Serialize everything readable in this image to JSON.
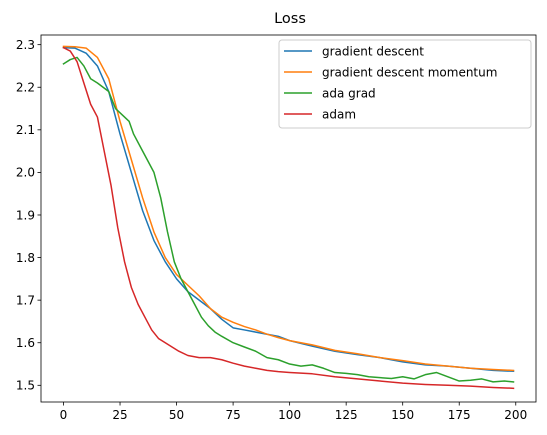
{
  "chart_data": {
    "type": "line",
    "title": "Loss",
    "xlabel": "",
    "ylabel": "",
    "xlim": [
      -9.95,
      208.95
    ],
    "ylim": [
      1.4608,
      2.3227
    ],
    "xticks": [
      0,
      25,
      50,
      75,
      100,
      125,
      150,
      175,
      200
    ],
    "yticks": [
      1.5,
      1.6,
      1.7,
      1.8,
      1.9,
      2.0,
      2.1,
      2.2,
      2.3
    ],
    "xtick_labels": [
      "0",
      "25",
      "50",
      "75",
      "100",
      "125",
      "150",
      "175",
      "200"
    ],
    "ytick_labels": [
      "1.5",
      "1.6",
      "1.7",
      "1.8",
      "1.9",
      "2.0",
      "2.1",
      "2.2",
      "2.3"
    ],
    "grid": false,
    "legend_position": "top-right",
    "series": [
      {
        "name": "gradient descent",
        "color": "#1f77b4",
        "x": [
          0,
          5,
          10,
          15,
          20,
          25,
          30,
          35,
          40,
          45,
          50,
          55,
          60,
          65,
          70,
          75,
          80,
          85,
          90,
          95,
          100,
          110,
          120,
          130,
          140,
          150,
          160,
          170,
          180,
          190,
          199
        ],
        "y": [
          2.293,
          2.292,
          2.28,
          2.25,
          2.19,
          2.09,
          2.0,
          1.91,
          1.84,
          1.79,
          1.75,
          1.72,
          1.7,
          1.68,
          1.655,
          1.635,
          1.63,
          1.625,
          1.62,
          1.615,
          1.605,
          1.592,
          1.58,
          1.572,
          1.565,
          1.555,
          1.548,
          1.545,
          1.54,
          1.535,
          1.533
        ]
      },
      {
        "name": "gradient descent momentum",
        "color": "#ff7f0e",
        "x": [
          0,
          5,
          10,
          15,
          20,
          25,
          30,
          35,
          40,
          45,
          50,
          55,
          60,
          65,
          70,
          75,
          80,
          85,
          90,
          95,
          100,
          110,
          120,
          130,
          140,
          150,
          160,
          170,
          180,
          190,
          199
        ],
        "y": [
          2.296,
          2.295,
          2.292,
          2.27,
          2.22,
          2.12,
          2.03,
          1.94,
          1.86,
          1.8,
          1.76,
          1.735,
          1.71,
          1.68,
          1.66,
          1.648,
          1.638,
          1.63,
          1.62,
          1.612,
          1.605,
          1.595,
          1.582,
          1.574,
          1.565,
          1.558,
          1.55,
          1.545,
          1.54,
          1.537,
          1.535
        ]
      },
      {
        "name": "ada grad",
        "color": "#2ca02c",
        "x": [
          0,
          3,
          6,
          9,
          12,
          15,
          20,
          23,
          25,
          27,
          29,
          31,
          34,
          37,
          40,
          43,
          46,
          49,
          52,
          55,
          58,
          61,
          64,
          67,
          70,
          75,
          80,
          85,
          90,
          95,
          100,
          105,
          110,
          115,
          120,
          125,
          130,
          135,
          140,
          145,
          150,
          155,
          160,
          165,
          170,
          175,
          180,
          185,
          190,
          195,
          199
        ],
        "y": [
          2.255,
          2.265,
          2.27,
          2.25,
          2.22,
          2.21,
          2.19,
          2.15,
          2.14,
          2.13,
          2.12,
          2.09,
          2.06,
          2.03,
          2.0,
          1.94,
          1.86,
          1.79,
          1.75,
          1.72,
          1.69,
          1.66,
          1.64,
          1.625,
          1.615,
          1.6,
          1.59,
          1.58,
          1.565,
          1.56,
          1.55,
          1.545,
          1.548,
          1.54,
          1.53,
          1.528,
          1.525,
          1.52,
          1.518,
          1.516,
          1.52,
          1.515,
          1.525,
          1.53,
          1.52,
          1.51,
          1.512,
          1.515,
          1.508,
          1.51,
          1.508
        ]
      },
      {
        "name": "adam",
        "color": "#d62728",
        "x": [
          0,
          3,
          6,
          9,
          12,
          15,
          18,
          21,
          24,
          27,
          30,
          33,
          36,
          39,
          42,
          45,
          48,
          51,
          55,
          60,
          65,
          70,
          75,
          80,
          85,
          90,
          95,
          100,
          110,
          120,
          130,
          140,
          150,
          160,
          170,
          180,
          190,
          199
        ],
        "y": [
          2.293,
          2.285,
          2.26,
          2.21,
          2.16,
          2.13,
          2.05,
          1.97,
          1.87,
          1.79,
          1.73,
          1.69,
          1.66,
          1.63,
          1.61,
          1.6,
          1.59,
          1.58,
          1.57,
          1.565,
          1.565,
          1.56,
          1.552,
          1.545,
          1.54,
          1.535,
          1.532,
          1.53,
          1.527,
          1.52,
          1.515,
          1.51,
          1.505,
          1.502,
          1.5,
          1.498,
          1.495,
          1.493
        ]
      }
    ]
  }
}
